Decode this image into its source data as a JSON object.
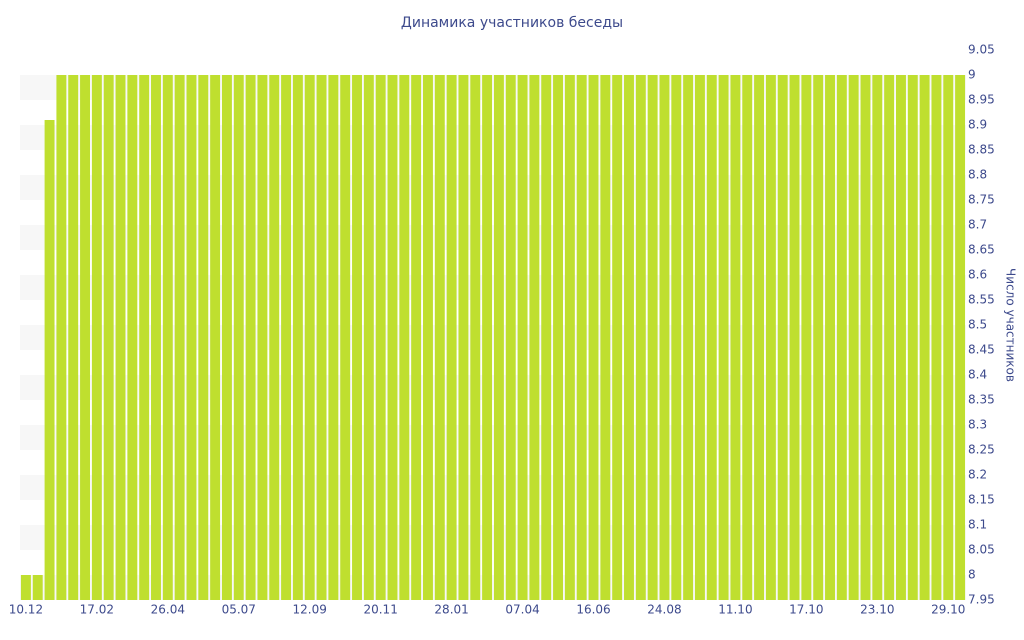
{
  "chart_data": {
    "type": "bar",
    "title": "Динамика участников беседы",
    "y_label": "Число участников",
    "categories": [
      "10.12",
      null,
      null,
      null,
      null,
      null,
      "17.02",
      null,
      null,
      null,
      null,
      null,
      "26.04",
      null,
      null,
      null,
      null,
      null,
      "05.07",
      null,
      null,
      null,
      null,
      null,
      "12.09",
      null,
      null,
      null,
      null,
      null,
      "20.11",
      null,
      null,
      null,
      null,
      null,
      "28.01",
      null,
      null,
      null,
      null,
      null,
      "07.04",
      null,
      null,
      null,
      null,
      null,
      "16.06",
      null,
      null,
      null,
      null,
      null,
      "24.08",
      null,
      null,
      null,
      null,
      null,
      "11.10",
      null,
      null,
      null,
      null,
      null,
      "17.10",
      null,
      null,
      null,
      null,
      null,
      "23.10",
      null,
      null,
      null,
      null,
      null,
      "29.10",
      null
    ],
    "values": [
      8,
      8,
      8.91,
      9,
      9,
      9,
      9,
      9,
      9,
      9,
      9,
      9,
      9,
      9,
      9,
      9,
      9,
      9,
      9,
      9,
      9,
      9,
      9,
      9,
      9,
      9,
      9,
      9,
      9,
      9,
      9,
      9,
      9,
      9,
      9,
      9,
      9,
      9,
      9,
      9,
      9,
      9,
      9,
      9,
      9,
      9,
      9,
      9,
      9,
      9,
      9,
      9,
      9,
      9,
      9,
      9,
      9,
      9,
      9,
      9,
      9,
      9,
      9,
      9,
      9,
      9,
      9,
      9,
      9,
      9,
      9,
      9,
      9,
      9,
      9,
      9,
      9,
      9,
      9,
      9
    ],
    "color": "#bfdf2f",
    "ylim": [
      7.95,
      9.05
    ],
    "yticks": [
      7.95,
      8,
      8.05,
      8.1,
      8.15,
      8.2,
      8.25,
      8.3,
      8.35,
      8.4,
      8.45,
      8.5,
      8.55,
      8.6,
      8.65,
      8.7,
      8.75,
      8.8,
      8.85,
      8.9,
      8.95,
      9,
      9.05
    ],
    "y_axis_side": "right",
    "striped_background": true
  }
}
